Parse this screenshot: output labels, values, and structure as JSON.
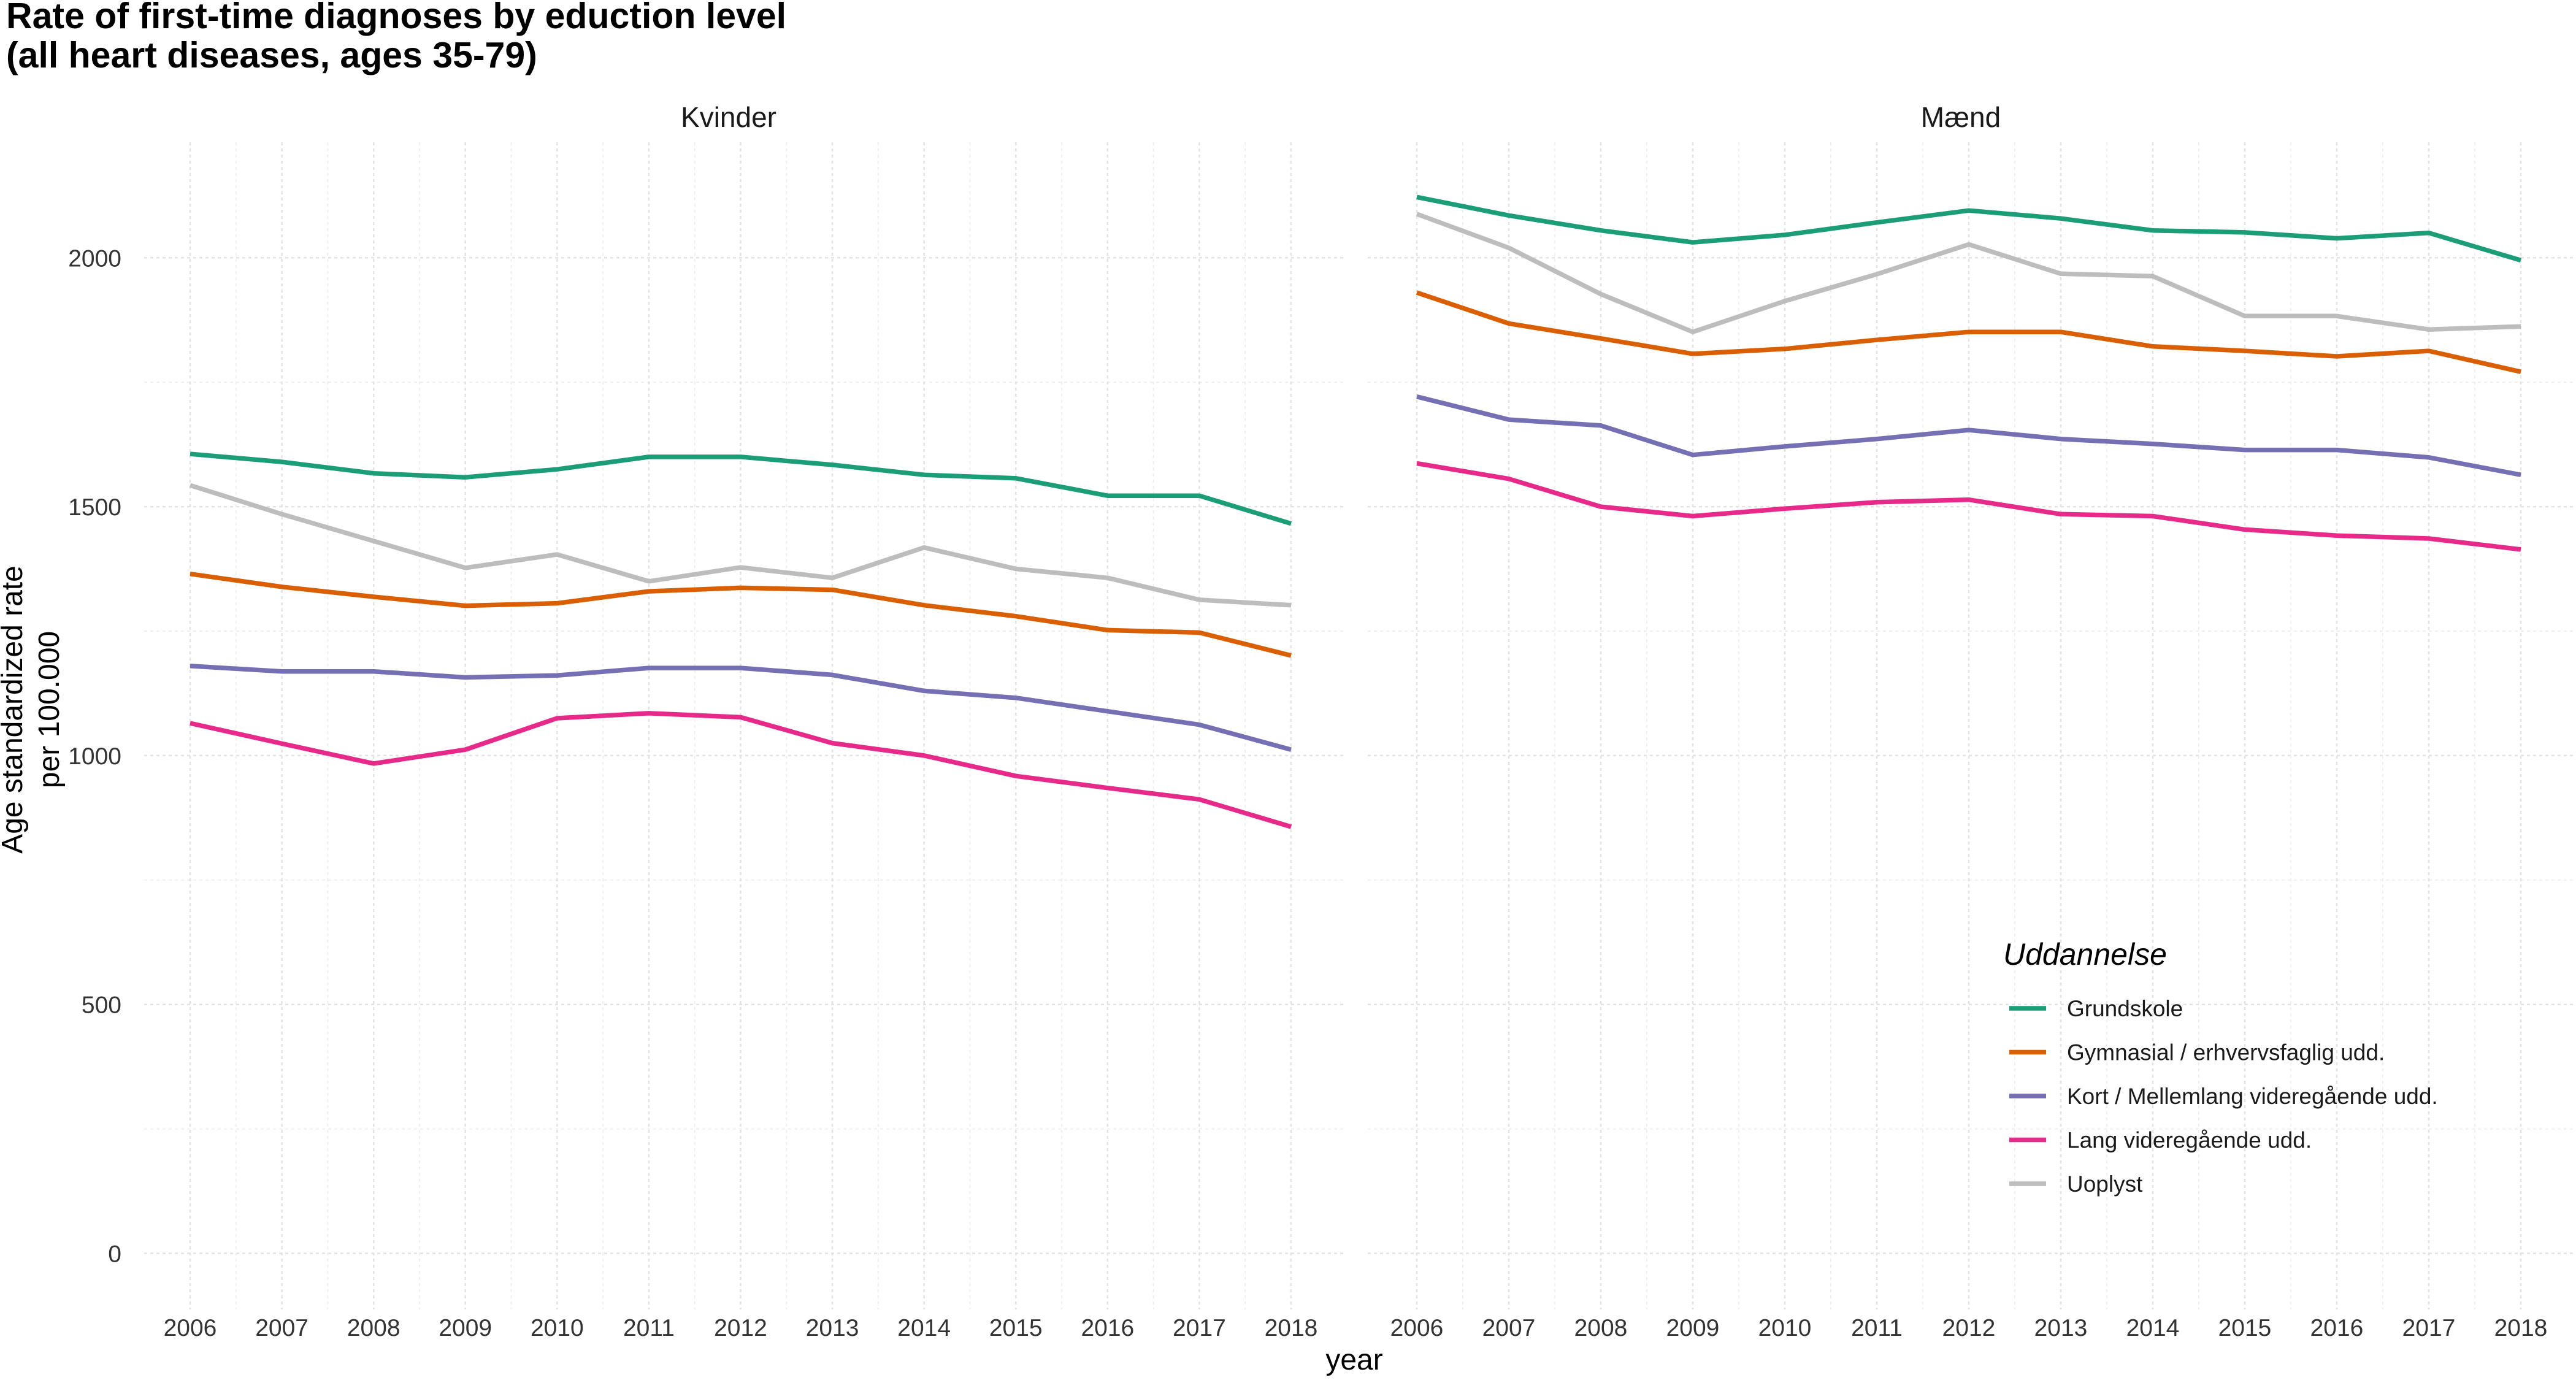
{
  "title_line1": "Rate of first-time diagnoses by eduction level",
  "title_line2": "(all heart diseases, ages 35-79)",
  "chart_data": {
    "type": "line",
    "xlabel": "year",
    "ylabel_line1": "Age standardized rate",
    "ylabel_line2": "per 100.000",
    "ylim": [
      -100,
      2230
    ],
    "y_ticks": [
      0,
      500,
      1000,
      1500,
      2000
    ],
    "x": [
      2006,
      2007,
      2008,
      2009,
      2010,
      2011,
      2012,
      2013,
      2014,
      2015,
      2016,
      2017,
      2018
    ],
    "grid": true,
    "legend": {
      "title": "Uddannelse",
      "position": "bottom-right inside right panel"
    },
    "colors": {
      "Grundskole": "#1b9e77",
      "Gymnasial / erhvervsfaglig udd.": "#d95f02",
      "Kort / Mellemlang videregående udd.": "#7570b3",
      "Lang videregående udd.": "#e7298a",
      "Uoplyst": "#bdbdbd"
    },
    "panels": [
      {
        "label": "Kvinder",
        "series": [
          {
            "name": "Grundskole",
            "values": [
              1606,
              1590,
              1567,
              1559,
              1575,
              1600,
              1600,
              1584,
              1564,
              1557,
              1522,
              1522,
              1466
            ]
          },
          {
            "name": "Gymnasial / erhvervsfaglig udd.",
            "values": [
              1365,
              1339,
              1319,
              1301,
              1306,
              1330,
              1337,
              1333,
              1302,
              1280,
              1252,
              1247,
              1201
            ]
          },
          {
            "name": "Kort / Mellemlang videregående udd.",
            "values": [
              1180,
              1169,
              1169,
              1157,
              1161,
              1176,
              1176,
              1162,
              1130,
              1116,
              1089,
              1062,
              1012
            ]
          },
          {
            "name": "Lang videregående udd.",
            "values": [
              1065,
              1024,
              984,
              1012,
              1075,
              1085,
              1077,
              1025,
              1000,
              959,
              935,
              912,
              857
            ]
          },
          {
            "name": "Uoplyst",
            "values": [
              1543,
              1485,
              1431,
              1377,
              1404,
              1350,
              1378,
              1357,
              1418,
              1375,
              1357,
              1313,
              1302
            ]
          }
        ]
      },
      {
        "label": "Mænd",
        "series": [
          {
            "name": "Grundskole",
            "values": [
              2122,
              2085,
              2055,
              2031,
              2046,
              2071,
              2095,
              2079,
              2055,
              2051,
              2039,
              2050,
              1995
            ]
          },
          {
            "name": "Gymnasial / erhvervsfaglig udd.",
            "values": [
              1930,
              1868,
              1838,
              1807,
              1817,
              1835,
              1851,
              1851,
              1822,
              1813,
              1802,
              1813,
              1771
            ]
          },
          {
            "name": "Kort / Mellemlang videregående udd.",
            "values": [
              1721,
              1675,
              1663,
              1604,
              1621,
              1636,
              1654,
              1636,
              1626,
              1614,
              1614,
              1599,
              1564
            ]
          },
          {
            "name": "Lang videregående udd.",
            "values": [
              1587,
              1556,
              1500,
              1481,
              1496,
              1509,
              1514,
              1485,
              1481,
              1454,
              1442,
              1436,
              1414
            ]
          },
          {
            "name": "Uoplyst",
            "values": [
              2088,
              2020,
              1927,
              1851,
              1913,
              1967,
              2027,
              1968,
              1963,
              1883,
              1883,
              1856,
              1862
            ]
          }
        ]
      }
    ]
  }
}
